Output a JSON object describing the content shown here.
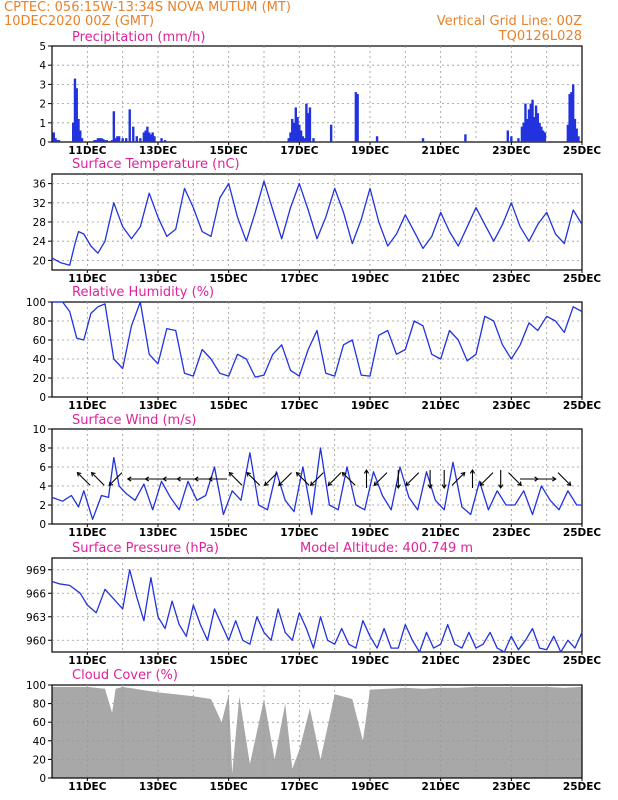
{
  "header": {
    "line1_left": "CPTEC:   056:15W-13:34S   NOVA MUTUM (MT)",
    "line2_left": "10DEC2020 00Z (GMT)",
    "line1_right": "Vertical Grid Line: 00Z",
    "line2_right": "TQ0126L028"
  },
  "colors": {
    "line": "#2233dd",
    "bars": "#2233dd",
    "cloud": "#a8a8a8",
    "title": "#e0229a",
    "header": "#e8822a",
    "grid": "#999999"
  },
  "chart_data": [
    {
      "type": "bar",
      "title": "Precipitation (mm/h)",
      "ylim": [
        0,
        5
      ],
      "yticks": [
        0,
        1,
        2,
        3,
        4,
        5
      ],
      "x_range_days": [
        10.0,
        25.0
      ],
      "xticks": [
        "11DEC",
        "13DEC",
        "15DEC",
        "17DEC",
        "19DEC",
        "21DEC",
        "23DEC",
        "25DEC"
      ],
      "x": [
        10.05,
        10.1,
        10.15,
        10.2,
        10.6,
        10.65,
        10.7,
        10.75,
        10.8,
        10.85,
        11.2,
        11.25,
        11.3,
        11.35,
        11.4,
        11.45,
        11.5,
        11.55,
        11.6,
        11.65,
        11.7,
        11.75,
        11.8,
        11.85,
        11.9,
        12.0,
        12.1,
        12.2,
        12.3,
        12.4,
        12.5,
        12.6,
        12.65,
        12.7,
        12.75,
        12.8,
        12.85,
        12.9,
        13.1,
        13.2,
        16.7,
        16.75,
        16.8,
        16.85,
        16.9,
        16.95,
        17.0,
        17.05,
        17.1,
        17.15,
        17.2,
        17.25,
        17.3,
        17.4,
        17.9,
        18.6,
        18.65,
        19.2,
        20.5,
        21.7,
        22.9,
        23.0,
        23.2,
        23.3,
        23.35,
        23.4,
        23.45,
        23.5,
        23.55,
        23.6,
        23.65,
        23.7,
        23.75,
        23.8,
        23.85,
        23.9,
        23.95,
        24.6,
        24.65,
        24.7,
        24.75,
        24.8,
        24.85,
        24.9
      ],
      "values": [
        0.5,
        0.2,
        0.1,
        0.1,
        1.0,
        3.3,
        2.8,
        1.2,
        0.6,
        0.2,
        0.1,
        0.1,
        0.2,
        0.2,
        0.2,
        0.15,
        0.1,
        0.1,
        0.05,
        0.05,
        0.1,
        1.6,
        0.2,
        0.3,
        0.3,
        0.2,
        0.2,
        1.7,
        0.8,
        0.3,
        0.2,
        0.5,
        0.6,
        0.8,
        0.5,
        0.4,
        0.5,
        0.3,
        0.2,
        0.1,
        0.2,
        0.5,
        1.2,
        1.0,
        1.8,
        1.3,
        0.9,
        0.6,
        0.3,
        0.2,
        2.0,
        1.5,
        1.8,
        0.2,
        0.9,
        2.6,
        2.5,
        0.3,
        0.2,
        0.4,
        0.6,
        0.3,
        0.2,
        0.8,
        1.0,
        2.0,
        1.2,
        1.7,
        2.0,
        2.2,
        1.3,
        1.9,
        1.5,
        1.0,
        0.8,
        0.6,
        0.5,
        0.9,
        2.5,
        2.6,
        3.0,
        1.2,
        0.7,
        0.3
      ]
    },
    {
      "type": "line",
      "title": "Surface Temperature (nC)",
      "ylim": [
        18,
        38
      ],
      "yticks": [
        20,
        24,
        28,
        32,
        36
      ],
      "x_range_days": [
        10.0,
        25.0
      ],
      "xticks": [
        "11DEC",
        "13DEC",
        "15DEC",
        "17DEC",
        "19DEC",
        "21DEC",
        "23DEC",
        "25DEC"
      ],
      "x": [
        10.0,
        10.25,
        10.5,
        10.65,
        10.75,
        10.9,
        11.1,
        11.3,
        11.5,
        11.75,
        12.0,
        12.25,
        12.5,
        12.75,
        13.0,
        13.25,
        13.5,
        13.75,
        14.0,
        14.25,
        14.5,
        14.75,
        15.0,
        15.25,
        15.5,
        15.75,
        16.0,
        16.25,
        16.5,
        16.75,
        17.0,
        17.25,
        17.5,
        17.75,
        18.0,
        18.25,
        18.5,
        18.75,
        19.0,
        19.25,
        19.5,
        19.75,
        20.0,
        20.25,
        20.5,
        20.75,
        21.0,
        21.25,
        21.5,
        21.75,
        22.0,
        22.25,
        22.5,
        22.75,
        23.0,
        23.25,
        23.5,
        23.75,
        24.0,
        24.25,
        24.5,
        24.75,
        25.0
      ],
      "values": [
        20.5,
        19.5,
        19.0,
        23.5,
        26.0,
        25.5,
        23.0,
        21.5,
        24.0,
        32.0,
        27.0,
        24.5,
        27.0,
        34.0,
        29.0,
        25.0,
        26.5,
        35.0,
        31.0,
        26.0,
        25.0,
        33.0,
        36.0,
        29.0,
        24.0,
        30.0,
        36.5,
        30.5,
        24.5,
        31.0,
        36.0,
        30.5,
        24.5,
        29.0,
        35.0,
        30.0,
        23.5,
        28.5,
        35.0,
        28.0,
        23.0,
        25.5,
        29.5,
        26.0,
        22.5,
        25.0,
        30.0,
        26.0,
        23.0,
        27.0,
        31.0,
        27.5,
        24.0,
        27.5,
        32.0,
        27.0,
        24.0,
        27.5,
        30.0,
        25.5,
        23.5,
        30.5,
        27.5
      ]
    },
    {
      "type": "line",
      "title": "Relative Humidity (%)",
      "ylim": [
        0,
        100
      ],
      "yticks": [
        0,
        20,
        40,
        60,
        80,
        100
      ],
      "x_range_days": [
        10.0,
        25.0
      ],
      "xticks": [
        "11DEC",
        "13DEC",
        "15DEC",
        "17DEC",
        "19DEC",
        "21DEC",
        "23DEC",
        "25DEC"
      ],
      "x": [
        10.0,
        10.3,
        10.5,
        10.7,
        10.9,
        11.1,
        11.3,
        11.5,
        11.75,
        12.0,
        12.25,
        12.5,
        12.75,
        13.0,
        13.25,
        13.5,
        13.75,
        14.0,
        14.25,
        14.5,
        14.75,
        15.0,
        15.25,
        15.5,
        15.75,
        16.0,
        16.25,
        16.5,
        16.75,
        17.0,
        17.25,
        17.5,
        17.75,
        18.0,
        18.25,
        18.5,
        18.75,
        19.0,
        19.25,
        19.5,
        19.75,
        20.0,
        20.25,
        20.5,
        20.75,
        21.0,
        21.25,
        21.5,
        21.75,
        22.0,
        22.25,
        22.5,
        22.75,
        23.0,
        23.25,
        23.5,
        23.75,
        24.0,
        24.25,
        24.5,
        24.75,
        25.0
      ],
      "values": [
        100,
        100,
        90,
        62,
        60,
        88,
        95,
        98,
        40,
        30,
        75,
        100,
        45,
        35,
        72,
        70,
        25,
        22,
        50,
        40,
        25,
        22,
        45,
        40,
        21,
        23,
        45,
        55,
        28,
        22,
        50,
        70,
        25,
        22,
        55,
        60,
        23,
        22,
        65,
        70,
        45,
        50,
        80,
        75,
        45,
        40,
        70,
        60,
        38,
        45,
        85,
        80,
        55,
        40,
        55,
        78,
        70,
        85,
        80,
        68,
        95,
        90
      ]
    },
    {
      "type": "line",
      "title": "Surface Wind (m/s)",
      "ylim": [
        0,
        10
      ],
      "yticks": [
        0,
        2,
        4,
        6,
        8,
        10
      ],
      "x_range_days": [
        10.0,
        25.0
      ],
      "xticks": [
        "11DEC",
        "13DEC",
        "15DEC",
        "17DEC",
        "19DEC",
        "21DEC",
        "23DEC",
        "25DEC"
      ],
      "x": [
        10.0,
        10.3,
        10.55,
        10.75,
        10.9,
        11.15,
        11.4,
        11.6,
        11.75,
        11.9,
        12.1,
        12.35,
        12.6,
        12.85,
        13.1,
        13.35,
        13.6,
        13.85,
        14.1,
        14.35,
        14.6,
        14.85,
        15.1,
        15.35,
        15.6,
        15.85,
        16.1,
        16.35,
        16.6,
        16.85,
        17.1,
        17.35,
        17.6,
        17.85,
        18.1,
        18.35,
        18.6,
        18.85,
        19.1,
        19.35,
        19.6,
        19.85,
        20.1,
        20.35,
        20.6,
        20.85,
        21.1,
        21.35,
        21.6,
        21.85,
        22.1,
        22.35,
        22.6,
        22.85,
        23.1,
        23.35,
        23.6,
        23.85,
        24.1,
        24.35,
        24.6,
        24.85,
        25.0
      ],
      "values": [
        2.8,
        2.4,
        3.0,
        1.8,
        3.5,
        0.5,
        3.0,
        2.8,
        7.0,
        4.0,
        3.2,
        2.5,
        4.2,
        1.5,
        4.5,
        2.8,
        1.5,
        4.5,
        2.5,
        3.0,
        6.0,
        1.0,
        3.5,
        2.5,
        7.5,
        2.0,
        1.5,
        5.5,
        2.5,
        1.3,
        6.0,
        1.0,
        8.0,
        2.0,
        1.5,
        6.0,
        2.0,
        1.5,
        5.5,
        3.0,
        1.5,
        6.0,
        2.8,
        1.5,
        5.5,
        2.5,
        1.5,
        6.5,
        1.8,
        1.0,
        4.5,
        1.5,
        3.5,
        2.0,
        2.0,
        3.5,
        1.0,
        4.0,
        2.5,
        1.5,
        3.5,
        2.0,
        2.0
      ],
      "arrows_x": [
        10.9,
        11.3,
        11.8,
        12.4,
        12.9,
        13.4,
        13.8,
        14.3,
        14.7,
        15.2,
        15.7,
        16.2,
        16.6,
        17.1,
        17.5,
        18.0,
        18.4,
        18.9,
        19.3,
        19.8,
        20.2,
        20.7,
        21.1,
        21.5,
        21.9,
        22.3,
        22.7,
        23.1,
        23.5,
        24.0,
        24.5
      ],
      "arrows_dir_deg": [
        135,
        135,
        225,
        180,
        180,
        180,
        180,
        180,
        180,
        135,
        135,
        225,
        225,
        135,
        225,
        225,
        135,
        90,
        225,
        270,
        225,
        270,
        270,
        45,
        90,
        225,
        270,
        315,
        0,
        0,
        315
      ]
    },
    {
      "type": "line",
      "title": "Surface Pressure (hPa)",
      "subtitle": "Model Altitude: 400.749 m",
      "ylim": [
        958.5,
        970.5
      ],
      "yticks": [
        960,
        963,
        966,
        969
      ],
      "x_range_days": [
        10.0,
        25.0
      ],
      "xticks": [
        "11DEC",
        "13DEC",
        "15DEC",
        "17DEC",
        "19DEC",
        "21DEC",
        "23DEC",
        "25DEC"
      ],
      "x": [
        10.0,
        10.2,
        10.5,
        10.8,
        11.0,
        11.25,
        11.5,
        11.8,
        12.0,
        12.2,
        12.4,
        12.6,
        12.8,
        13.0,
        13.2,
        13.4,
        13.6,
        13.8,
        14.0,
        14.2,
        14.4,
        14.6,
        14.8,
        15.0,
        15.2,
        15.4,
        15.6,
        15.8,
        16.0,
        16.2,
        16.4,
        16.6,
        16.8,
        17.0,
        17.2,
        17.4,
        17.6,
        17.8,
        18.0,
        18.2,
        18.4,
        18.6,
        18.8,
        19.0,
        19.2,
        19.4,
        19.6,
        19.8,
        20.0,
        20.2,
        20.4,
        20.6,
        20.8,
        21.0,
        21.2,
        21.4,
        21.6,
        21.8,
        22.0,
        22.2,
        22.4,
        22.6,
        22.8,
        23.0,
        23.2,
        23.4,
        23.6,
        23.8,
        24.0,
        24.2,
        24.4,
        24.6,
        24.8,
        25.0
      ],
      "values": [
        967.5,
        967.2,
        967.0,
        966.0,
        964.5,
        963.5,
        966.5,
        965.0,
        964.0,
        969.0,
        965.5,
        962.5,
        968.0,
        963.0,
        961.5,
        965.0,
        962.0,
        960.5,
        964.5,
        962.0,
        960.0,
        964.0,
        962.0,
        960.0,
        962.5,
        960.0,
        959.5,
        963.0,
        961.0,
        960.0,
        964.0,
        961.0,
        960.0,
        963.5,
        961.5,
        959.0,
        963.0,
        960.0,
        959.5,
        961.5,
        959.5,
        959.0,
        962.5,
        960.5,
        959.0,
        961.5,
        959.0,
        959.0,
        962.0,
        960.0,
        958.5,
        961.0,
        959.0,
        959.5,
        962.0,
        959.5,
        959.0,
        961.0,
        959.0,
        959.5,
        961.0,
        959.0,
        958.5,
        960.5,
        958.8,
        960.0,
        961.5,
        959.0,
        958.8,
        960.5,
        958.5,
        960.0,
        959.0,
        961.0
      ]
    },
    {
      "type": "area",
      "title": "Cloud Cover (%)",
      "ylim": [
        0,
        100
      ],
      "yticks": [
        0,
        20,
        40,
        60,
        80,
        100
      ],
      "x_range_days": [
        10.0,
        25.0
      ],
      "xticks": [
        "11DEC",
        "13DEC",
        "15DEC",
        "17DEC",
        "19DEC",
        "21DEC",
        "23DEC",
        "25DEC"
      ],
      "x": [
        10.0,
        10.5,
        11.0,
        11.5,
        11.7,
        11.8,
        12.0,
        12.5,
        13.0,
        13.5,
        14.0,
        14.5,
        14.8,
        15.0,
        15.1,
        15.3,
        15.6,
        16.0,
        16.3,
        16.6,
        16.8,
        17.0,
        17.3,
        17.6,
        18.0,
        18.5,
        18.8,
        19.0,
        19.5,
        20.0,
        20.5,
        21.0,
        21.5,
        22.0,
        22.5,
        23.0,
        23.5,
        24.0,
        24.5,
        25.0
      ],
      "values": [
        98,
        98,
        98,
        96,
        70,
        96,
        98,
        95,
        92,
        90,
        88,
        85,
        60,
        90,
        5,
        88,
        15,
        85,
        20,
        80,
        10,
        30,
        75,
        20,
        90,
        85,
        40,
        95,
        96,
        97,
        96,
        97,
        97,
        98,
        98,
        98,
        98,
        98,
        97,
        98
      ]
    }
  ]
}
